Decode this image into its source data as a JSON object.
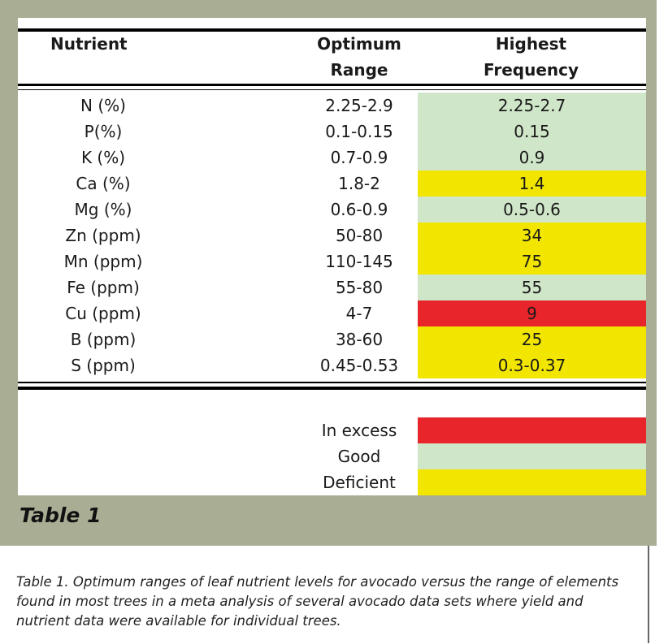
{
  "headers": {
    "nutrient": "Nutrient",
    "optimum_line1": "Optimum",
    "optimum_line2": "Range",
    "highest_line1": "Highest",
    "highest_line2": "Frequency"
  },
  "colors": {
    "excess": "#e8252a",
    "good": "#cfe6c8",
    "deficient": "#f2e600"
  },
  "rows": [
    {
      "nutrient": "N (%)",
      "optimum": "2.25-2.9",
      "highest": "2.25-2.7",
      "status": "good"
    },
    {
      "nutrient": "P(%)",
      "optimum": "0.1-0.15",
      "highest": "0.15",
      "status": "good"
    },
    {
      "nutrient": "K (%)",
      "optimum": "0.7-0.9",
      "highest": "0.9",
      "status": "good"
    },
    {
      "nutrient": "Ca (%)",
      "optimum": "1.8-2",
      "highest": "1.4",
      "status": "deficient"
    },
    {
      "nutrient": "Mg (%)",
      "optimum": "0.6-0.9",
      "highest": "0.5-0.6",
      "status": "good"
    },
    {
      "nutrient": "Zn (ppm)",
      "optimum": "50-80",
      "highest": "34",
      "status": "deficient"
    },
    {
      "nutrient": "Mn (ppm)",
      "optimum": "110-145",
      "highest": "75",
      "status": "deficient"
    },
    {
      "nutrient": "Fe (ppm)",
      "optimum": "55-80",
      "highest": "55",
      "status": "good"
    },
    {
      "nutrient": "Cu (ppm)",
      "optimum": "4-7",
      "highest": "9",
      "status": "excess"
    },
    {
      "nutrient": "B (ppm)",
      "optimum": "38-60",
      "highest": "25",
      "status": "deficient"
    },
    {
      "nutrient": "S (ppm)",
      "optimum": "0.45-0.53",
      "highest": "0.3-0.37",
      "status": "deficient"
    }
  ],
  "legend": [
    {
      "label": "In excess",
      "status": "excess"
    },
    {
      "label": "Good",
      "status": "good"
    },
    {
      "label": "Deficient",
      "status": "deficient"
    }
  ],
  "table_title": "Table 1",
  "caption": "Table 1. Optimum ranges of leaf nutrient levels for avocado versus the range of elements found in most trees in a meta analysis of several avocado data sets where yield and nutrient data were available for individual trees."
}
